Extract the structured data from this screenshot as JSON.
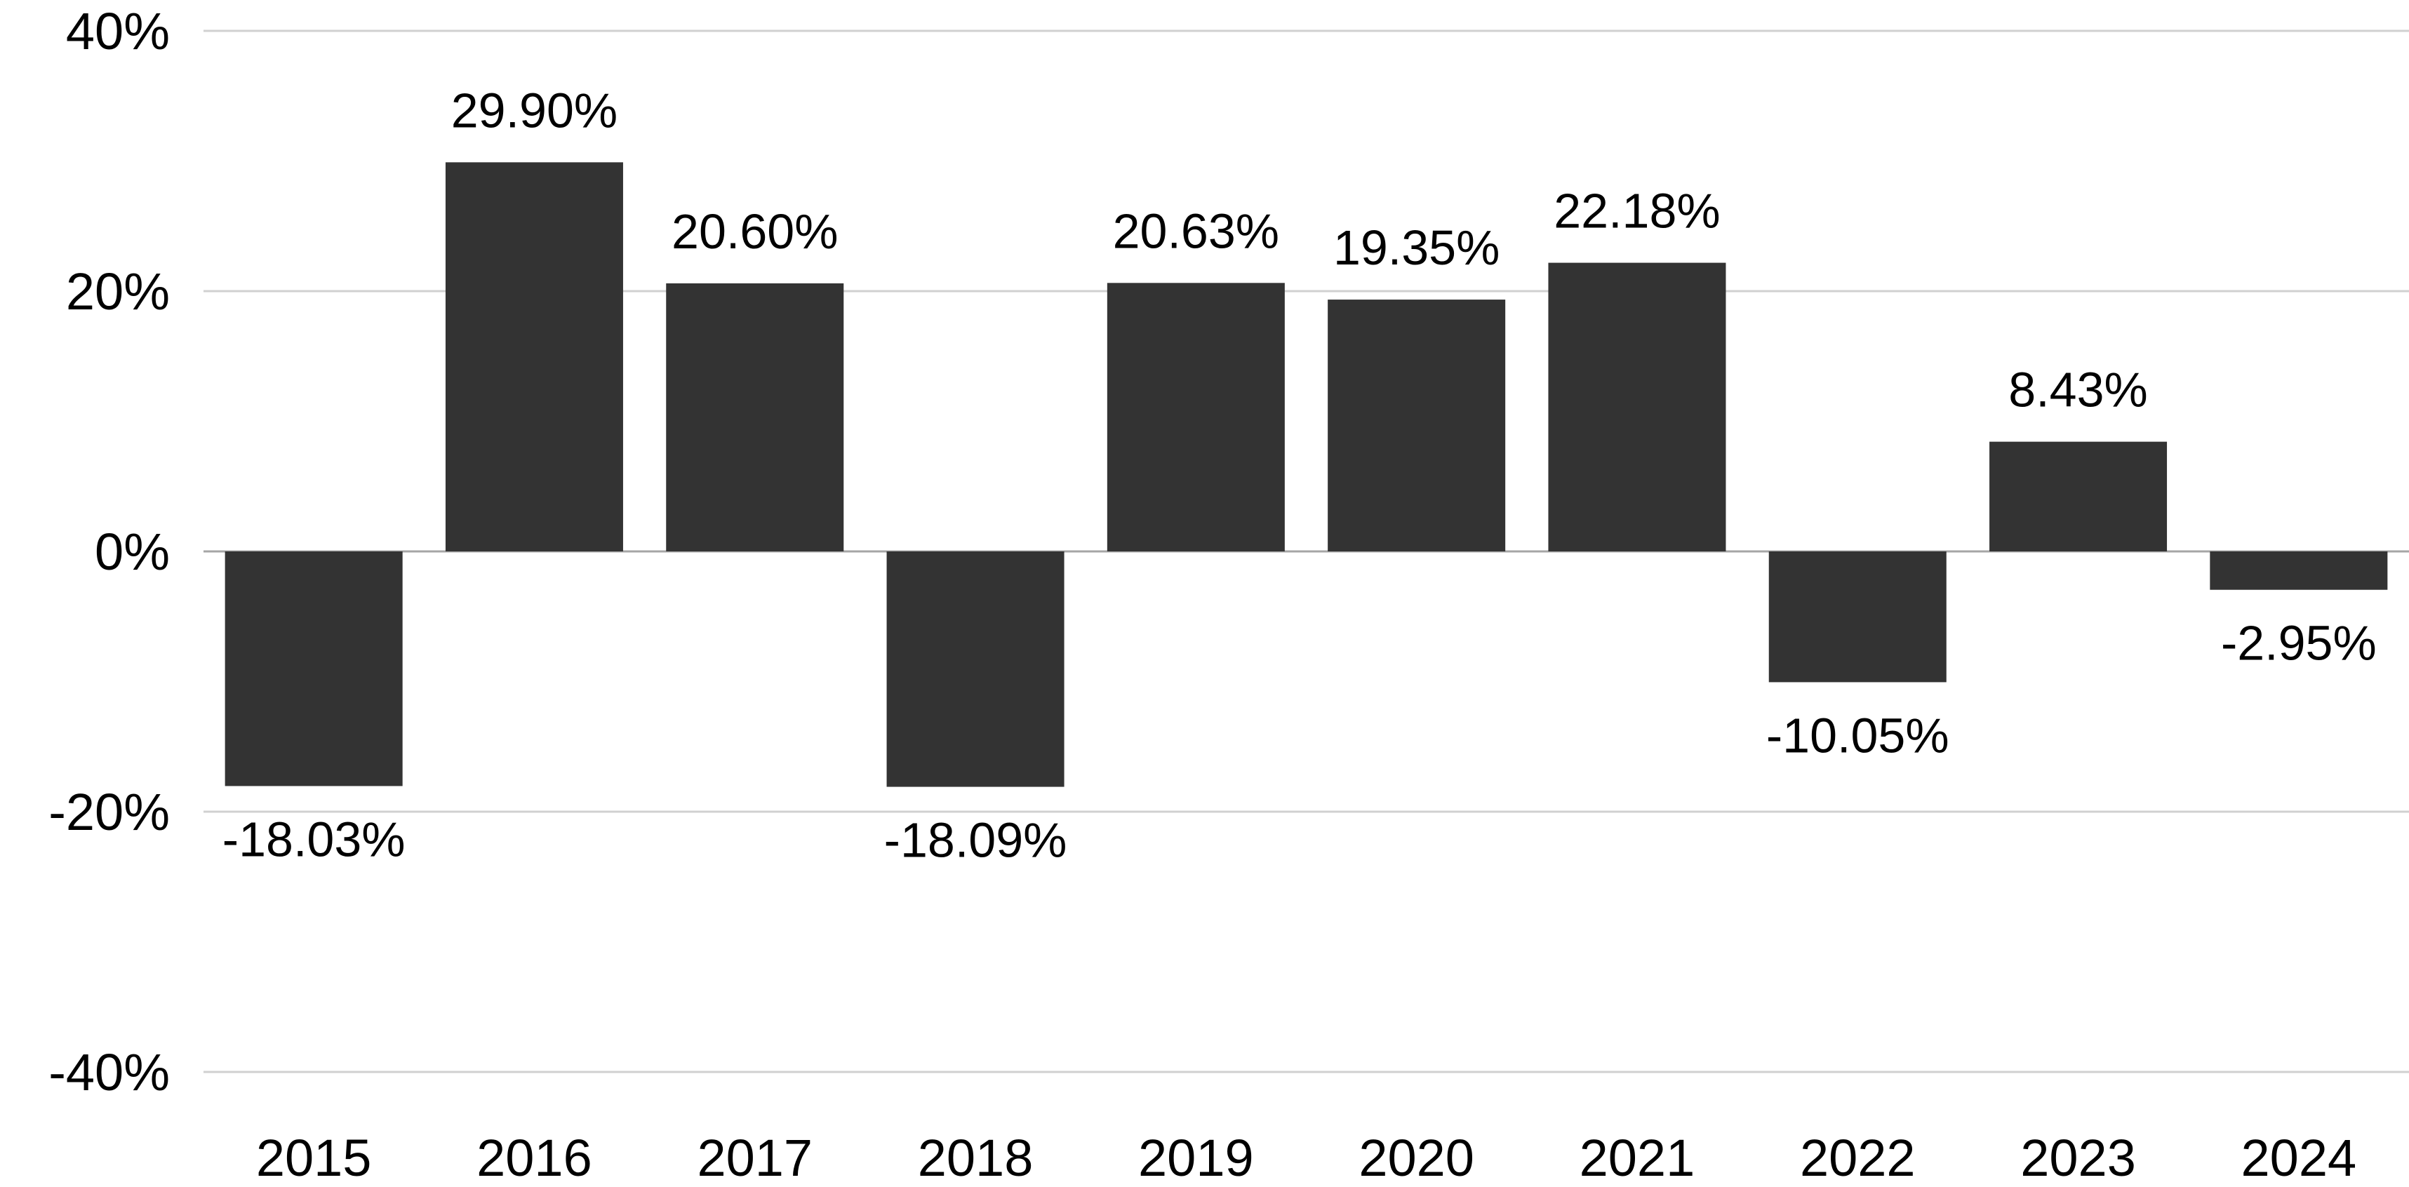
{
  "chart_data": {
    "type": "bar",
    "title": "",
    "xlabel": "",
    "ylabel": "",
    "categories": [
      "2015",
      "2016",
      "2017",
      "2018",
      "2019",
      "2020",
      "2021",
      "2022",
      "2023",
      "2024"
    ],
    "values": [
      -18.03,
      29.9,
      20.6,
      -18.09,
      20.63,
      19.35,
      22.18,
      -10.05,
      8.43,
      -2.95
    ],
    "data_labels": [
      "-18.03%",
      "29.90%",
      "20.60%",
      "-18.09%",
      "20.63%",
      "19.35%",
      "22.18%",
      "-10.05%",
      "8.43%",
      "-2.95%"
    ],
    "ylim": [
      -40,
      40
    ],
    "y_ticks": [
      40,
      20,
      0,
      -20,
      -40
    ],
    "y_tick_labels": [
      "40%",
      "20%",
      "0%",
      "-20%",
      "-40%"
    ],
    "grid": true,
    "legend": "none",
    "bar_color": "#333333",
    "gridline_color": "#d0d0d0"
  }
}
